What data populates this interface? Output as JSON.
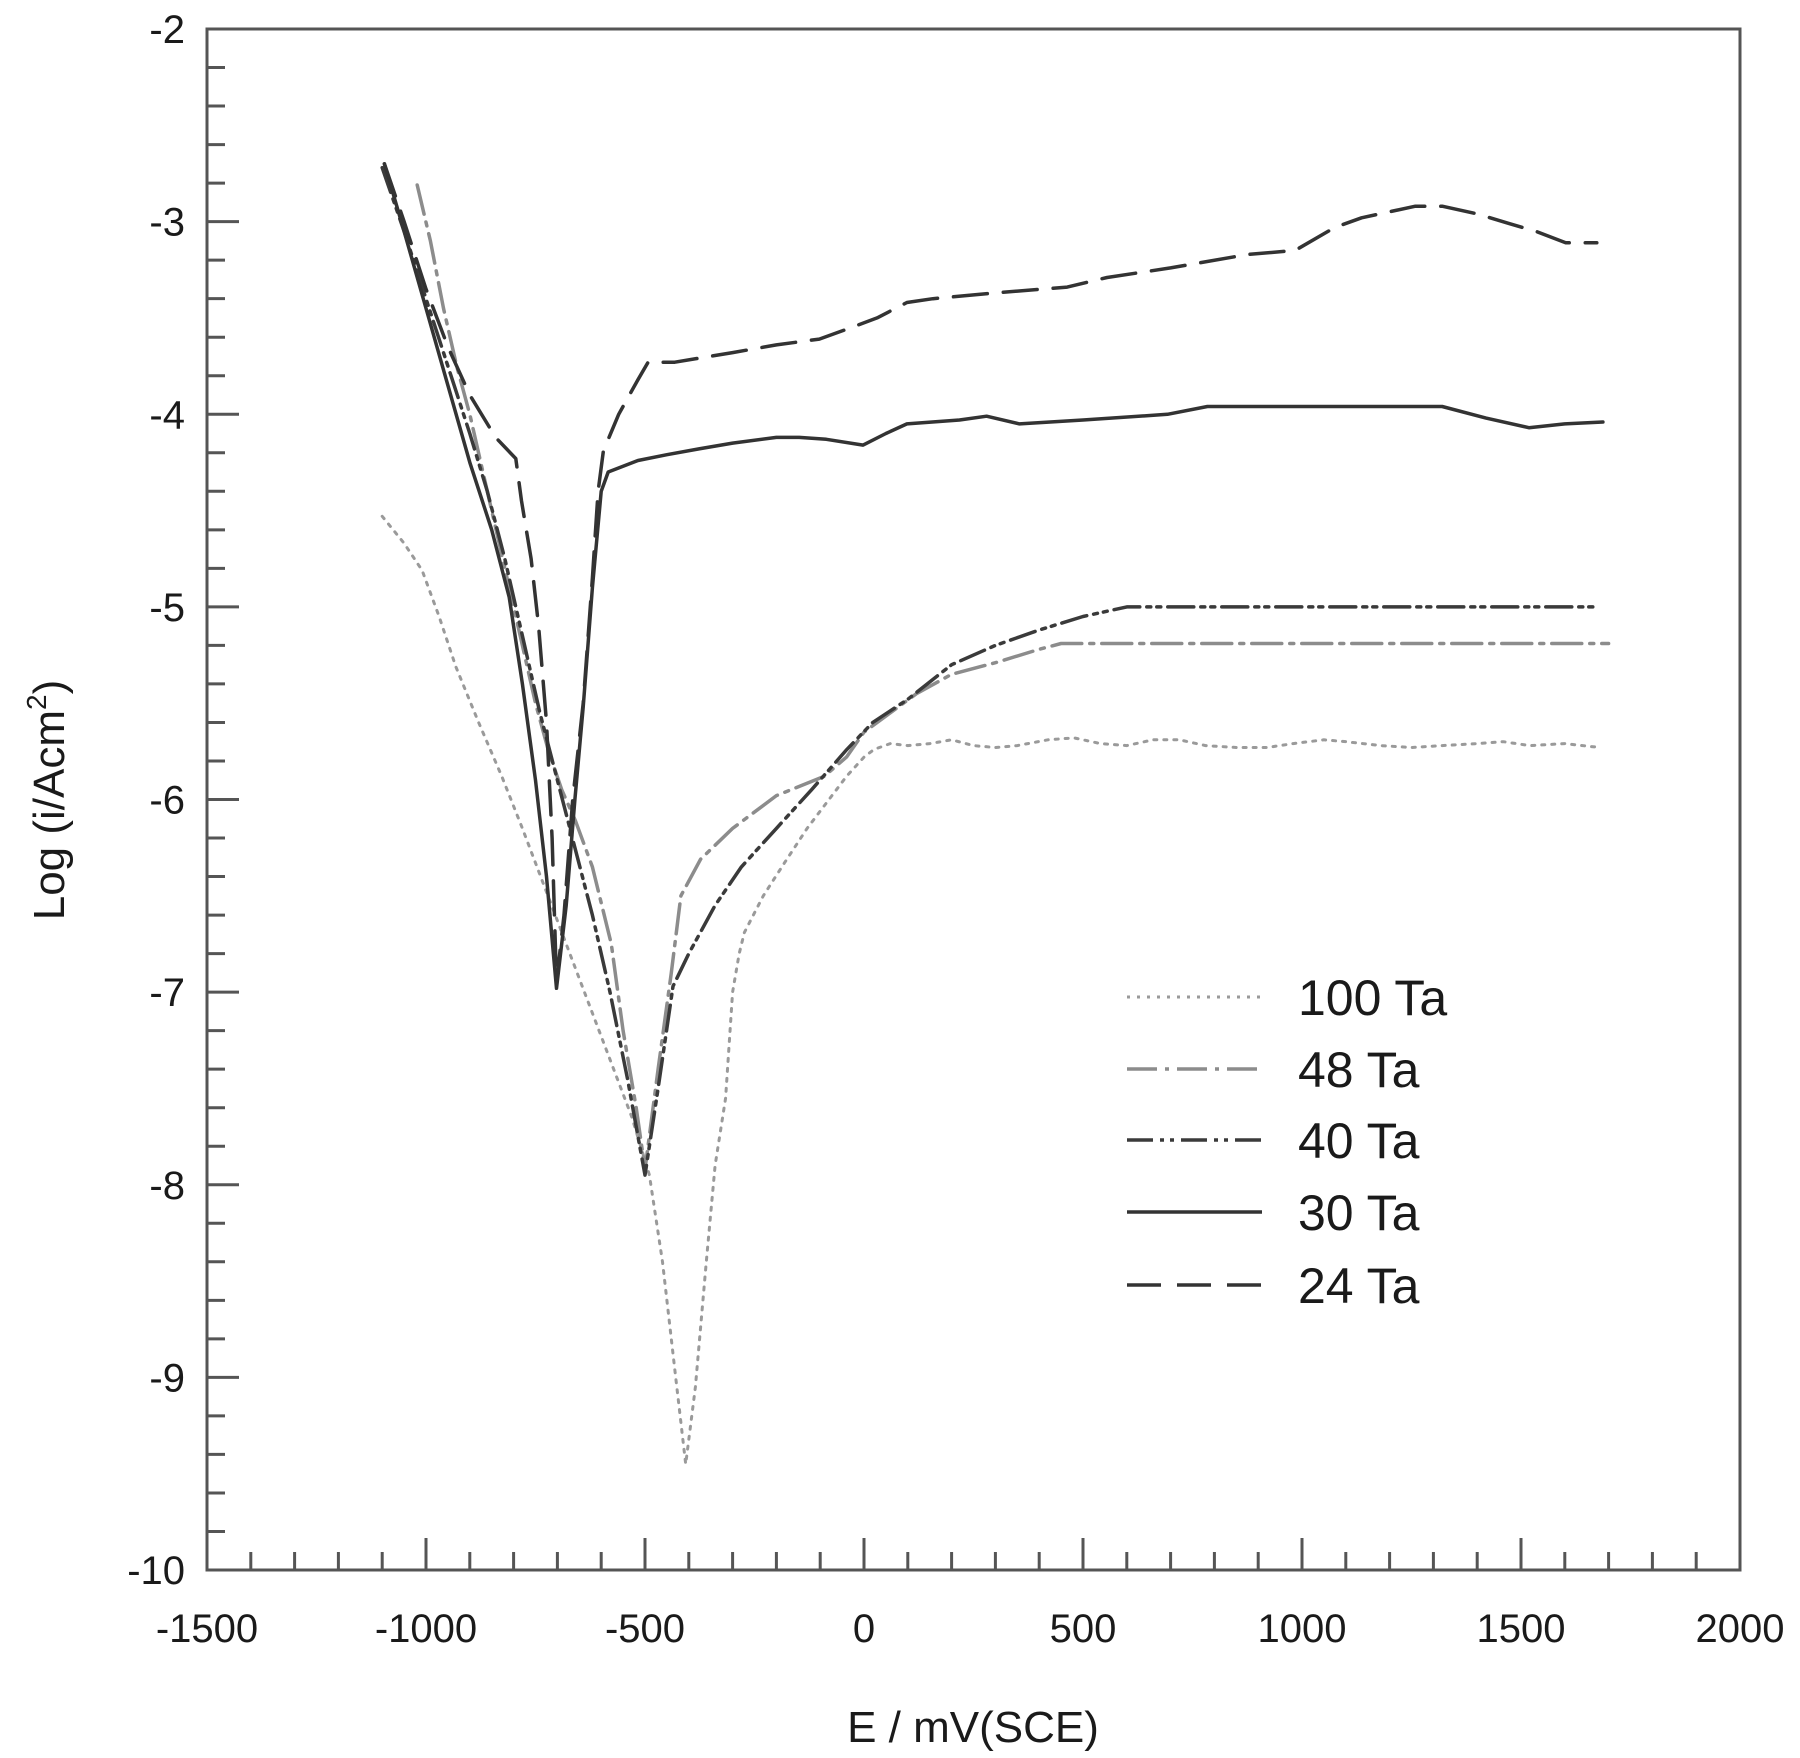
{
  "chart_data": {
    "type": "line",
    "title": "",
    "xlabel": "E / mV(SCE)",
    "ylabel": "Log (i/Acm²)",
    "ylabel_main": "Log (i/Acm",
    "ylabel_sup": "2",
    "ylabel_close": ")",
    "xlim": [
      -1500,
      2000
    ],
    "ylim": [
      -10,
      -2
    ],
    "grid": false,
    "legend_position": "lower right (inside plot)",
    "x_ticks": [
      -1500,
      -1000,
      -500,
      0,
      500,
      1000,
      1500,
      2000
    ],
    "x_tick_labels": [
      "-1500",
      "-1000",
      "-500",
      "0",
      "500",
      "1000",
      "1500",
      "2000"
    ],
    "y_ticks": [
      -2,
      -3,
      -4,
      -5,
      -6,
      -7,
      -8,
      -9,
      -10
    ],
    "y_tick_labels": [
      "-2",
      "-3",
      "-4",
      "-5",
      "-6",
      "-7",
      "-8",
      "-9",
      "-10"
    ],
    "series": [
      {
        "name": "100 Ta",
        "style": "dotted",
        "color": "#9a9a9a",
        "points": [
          [
            -1100,
            -4.53
          ],
          [
            -1050,
            -4.67
          ],
          [
            -1009,
            -4.81
          ],
          [
            -970,
            -5.05
          ],
          [
            -932,
            -5.31
          ],
          [
            -880,
            -5.6
          ],
          [
            -827,
            -5.88
          ],
          [
            -780,
            -6.15
          ],
          [
            -730,
            -6.45
          ],
          [
            -680,
            -6.75
          ],
          [
            -630,
            -7.05
          ],
          [
            -580,
            -7.35
          ],
          [
            -530,
            -7.65
          ],
          [
            -490,
            -7.95
          ],
          [
            -460,
            -8.4
          ],
          [
            -430,
            -9.0
          ],
          [
            -407,
            -9.45
          ],
          [
            -385,
            -9.05
          ],
          [
            -360,
            -8.4
          ],
          [
            -340,
            -7.9
          ],
          [
            -316,
            -7.55
          ],
          [
            -300,
            -7.0
          ],
          [
            -285,
            -6.8
          ],
          [
            -273,
            -6.69
          ],
          [
            -230,
            -6.5
          ],
          [
            -182,
            -6.33
          ],
          [
            -130,
            -6.15
          ],
          [
            -80,
            -6.0
          ],
          [
            -40,
            -5.88
          ],
          [
            0,
            -5.78
          ],
          [
            23,
            -5.74
          ],
          [
            60,
            -5.71
          ],
          [
            100,
            -5.72
          ],
          [
            150,
            -5.71
          ],
          [
            200,
            -5.69
          ],
          [
            250,
            -5.72
          ],
          [
            300,
            -5.73
          ],
          [
            350,
            -5.72
          ],
          [
            420,
            -5.69
          ],
          [
            480,
            -5.68
          ],
          [
            540,
            -5.71
          ],
          [
            600,
            -5.72
          ],
          [
            660,
            -5.69
          ],
          [
            720,
            -5.69
          ],
          [
            780,
            -5.72
          ],
          [
            850,
            -5.73
          ],
          [
            920,
            -5.73
          ],
          [
            980,
            -5.71
          ],
          [
            1050,
            -5.69
          ],
          [
            1100,
            -5.7
          ],
          [
            1180,
            -5.72
          ],
          [
            1250,
            -5.73
          ],
          [
            1320,
            -5.72
          ],
          [
            1400,
            -5.71
          ],
          [
            1460,
            -5.7
          ],
          [
            1520,
            -5.72
          ],
          [
            1600,
            -5.71
          ],
          [
            1680,
            -5.73
          ]
        ]
      },
      {
        "name": "48 Ta",
        "style": "dash-dot",
        "color": "#8c8c8c",
        "points": [
          [
            -1020,
            -2.81
          ],
          [
            -990,
            -3.1
          ],
          [
            -960,
            -3.45
          ],
          [
            -930,
            -3.75
          ],
          [
            -900,
            -4.0
          ],
          [
            -870,
            -4.3
          ],
          [
            -840,
            -4.6
          ],
          [
            -810,
            -4.9
          ],
          [
            -780,
            -5.2
          ],
          [
            -750,
            -5.5
          ],
          [
            -720,
            -5.75
          ],
          [
            -690,
            -5.95
          ],
          [
            -659,
            -6.11
          ],
          [
            -620,
            -6.35
          ],
          [
            -577,
            -6.75
          ],
          [
            -550,
            -7.2
          ],
          [
            -520,
            -7.6
          ],
          [
            -500,
            -7.92
          ],
          [
            -470,
            -7.4
          ],
          [
            -440,
            -6.9
          ],
          [
            -418,
            -6.5
          ],
          [
            -373,
            -6.31
          ],
          [
            -300,
            -6.15
          ],
          [
            -200,
            -5.98
          ],
          [
            -91,
            -5.88
          ],
          [
            -40,
            -5.78
          ],
          [
            0,
            -5.65
          ],
          [
            60,
            -5.55
          ],
          [
            120,
            -5.45
          ],
          [
            200,
            -5.35
          ],
          [
            300,
            -5.29
          ],
          [
            400,
            -5.22
          ],
          [
            450,
            -5.19
          ],
          [
            600,
            -5.19
          ],
          [
            800,
            -5.19
          ],
          [
            1000,
            -5.19
          ],
          [
            1200,
            -5.19
          ],
          [
            1400,
            -5.19
          ],
          [
            1600,
            -5.19
          ],
          [
            1700,
            -5.19
          ]
        ]
      },
      {
        "name": "40 Ta",
        "style": "dash-dot-dot",
        "color": "#3a3a3a",
        "points": [
          [
            -1100,
            -2.72
          ],
          [
            -1050,
            -3.05
          ],
          [
            -1000,
            -3.4
          ],
          [
            -950,
            -3.75
          ],
          [
            -900,
            -4.1
          ],
          [
            -860,
            -4.4
          ],
          [
            -820,
            -4.75
          ],
          [
            -780,
            -5.15
          ],
          [
            -740,
            -5.55
          ],
          [
            -700,
            -5.9
          ],
          [
            -660,
            -6.25
          ],
          [
            -620,
            -6.6
          ],
          [
            -580,
            -7.0
          ],
          [
            -540,
            -7.45
          ],
          [
            -500,
            -7.95
          ],
          [
            -470,
            -7.5
          ],
          [
            -436,
            -6.97
          ],
          [
            -400,
            -6.8
          ],
          [
            -340,
            -6.55
          ],
          [
            -280,
            -6.35
          ],
          [
            -200,
            -6.15
          ],
          [
            -120,
            -5.95
          ],
          [
            -39,
            -5.74
          ],
          [
            20,
            -5.6
          ],
          [
            100,
            -5.48
          ],
          [
            200,
            -5.3
          ],
          [
            300,
            -5.2
          ],
          [
            400,
            -5.12
          ],
          [
            500,
            -5.05
          ],
          [
            600,
            -5.0
          ],
          [
            800,
            -5.0
          ],
          [
            1000,
            -5.0
          ],
          [
            1200,
            -5.0
          ],
          [
            1400,
            -5.0
          ],
          [
            1670,
            -5.0
          ]
        ]
      },
      {
        "name": "30 Ta",
        "style": "solid",
        "color": "#333333",
        "points": [
          [
            -1095,
            -2.7
          ],
          [
            -1050,
            -3.05
          ],
          [
            -1000,
            -3.45
          ],
          [
            -950,
            -3.85
          ],
          [
            -900,
            -4.25
          ],
          [
            -850,
            -4.6
          ],
          [
            -810,
            -4.95
          ],
          [
            -780,
            -5.4
          ],
          [
            -750,
            -5.9
          ],
          [
            -725,
            -6.4
          ],
          [
            -702,
            -6.98
          ],
          [
            -680,
            -6.55
          ],
          [
            -660,
            -6.0
          ],
          [
            -641,
            -5.52
          ],
          [
            -620,
            -4.9
          ],
          [
            -600,
            -4.4
          ],
          [
            -584,
            -4.3
          ],
          [
            -516,
            -4.24
          ],
          [
            -450,
            -4.21
          ],
          [
            -377,
            -4.18
          ],
          [
            -300,
            -4.15
          ],
          [
            -200,
            -4.12
          ],
          [
            -148,
            -4.12
          ],
          [
            -86,
            -4.13
          ],
          [
            -2,
            -4.16
          ],
          [
            50,
            -4.1
          ],
          [
            98,
            -4.05
          ],
          [
            218,
            -4.03
          ],
          [
            280,
            -4.01
          ],
          [
            355,
            -4.05
          ],
          [
            500,
            -4.03
          ],
          [
            693,
            -4.0
          ],
          [
            784,
            -3.96
          ],
          [
            1000,
            -3.96
          ],
          [
            1200,
            -3.96
          ],
          [
            1320,
            -3.96
          ],
          [
            1420,
            -4.02
          ],
          [
            1518,
            -4.07
          ],
          [
            1600,
            -4.05
          ],
          [
            1687,
            -4.04
          ]
        ]
      },
      {
        "name": "24 Ta",
        "style": "long-dash",
        "color": "#333333",
        "points": [
          [
            -1095,
            -2.7
          ],
          [
            -1050,
            -3.0
          ],
          [
            -1000,
            -3.35
          ],
          [
            -950,
            -3.65
          ],
          [
            -900,
            -3.9
          ],
          [
            -841,
            -4.12
          ],
          [
            -795,
            -4.23
          ],
          [
            -782,
            -4.45
          ],
          [
            -760,
            -4.75
          ],
          [
            -743,
            -5.1
          ],
          [
            -725,
            -5.6
          ],
          [
            -712,
            -6.2
          ],
          [
            -702,
            -6.95
          ],
          [
            -685,
            -6.6
          ],
          [
            -665,
            -6.0
          ],
          [
            -641,
            -5.5
          ],
          [
            -620,
            -4.85
          ],
          [
            -607,
            -4.4
          ],
          [
            -595,
            -4.19
          ],
          [
            -560,
            -4.0
          ],
          [
            -516,
            -3.82
          ],
          [
            -493,
            -3.73
          ],
          [
            -432,
            -3.73
          ],
          [
            -300,
            -3.68
          ],
          [
            -200,
            -3.64
          ],
          [
            -102,
            -3.61
          ],
          [
            -41,
            -3.56
          ],
          [
            30,
            -3.5
          ],
          [
            98,
            -3.42
          ],
          [
            157,
            -3.4
          ],
          [
            300,
            -3.37
          ],
          [
            464,
            -3.34
          ],
          [
            555,
            -3.29
          ],
          [
            700,
            -3.24
          ],
          [
            877,
            -3.17
          ],
          [
            984,
            -3.15
          ],
          [
            1075,
            -3.03
          ],
          [
            1136,
            -2.98
          ],
          [
            1259,
            -2.92
          ],
          [
            1320,
            -2.92
          ],
          [
            1400,
            -2.96
          ],
          [
            1473,
            -3.01
          ],
          [
            1534,
            -3.05
          ],
          [
            1602,
            -3.11
          ],
          [
            1673,
            -3.11
          ]
        ]
      }
    ]
  }
}
